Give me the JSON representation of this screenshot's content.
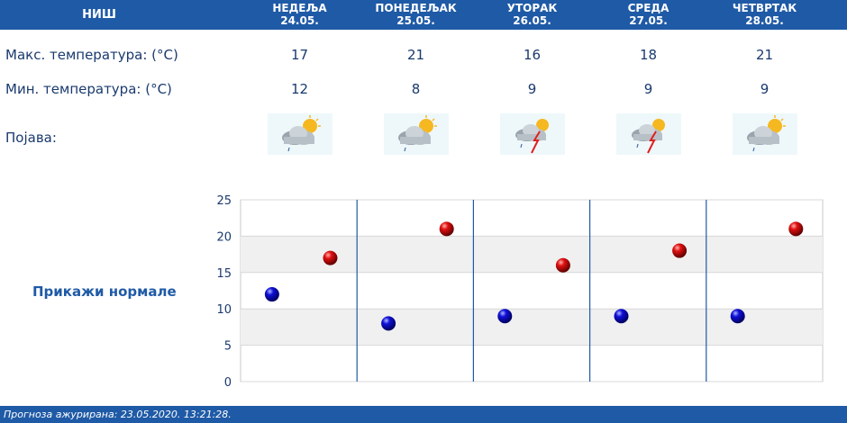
{
  "header": {
    "city": "НИШ"
  },
  "days": [
    {
      "name": "НЕДЕЉА",
      "date": "24.05.",
      "max": "17",
      "min": "12",
      "icon": "partly-cloudy-rain-icon"
    },
    {
      "name": "ПОНЕДЕЉАК",
      "date": "25.05.",
      "max": "21",
      "min": "8",
      "icon": "partly-cloudy-rain-icon"
    },
    {
      "name": "УТОРАК",
      "date": "26.05.",
      "max": "16",
      "min": "9",
      "icon": "thunderstorm-icon"
    },
    {
      "name": "СРЕДА",
      "date": "27.05.",
      "max": "18",
      "min": "9",
      "icon": "thunderstorm-icon"
    },
    {
      "name": "ЧЕТВРТАК",
      "date": "28.05.",
      "max": "21",
      "min": "9",
      "icon": "partly-cloudy-rain-icon"
    }
  ],
  "labels": {
    "max": "Макс. температура: (°C)",
    "min": "Мин. температура: (°C)",
    "phenomenon": "Појава:",
    "normals": "Прикажи нормале"
  },
  "footer": {
    "updated": "Прогноза ажурирана:  23.05.2020. 13:21:28."
  },
  "colors": {
    "header_bg": "#1f5aa6",
    "max_dot": "#cc0000",
    "min_dot": "#0000bb"
  },
  "chart_data": {
    "type": "scatter",
    "ylim": [
      0,
      25
    ],
    "yticks": [
      "0",
      "5",
      "10",
      "15",
      "20",
      "25"
    ],
    "grid": true,
    "series": [
      {
        "values": [
          12,
          8,
          9,
          9,
          9
        ],
        "color": "#0000bb"
      },
      {
        "values": [
          17,
          21,
          16,
          18,
          21
        ],
        "color": "#cc0000"
      }
    ]
  }
}
